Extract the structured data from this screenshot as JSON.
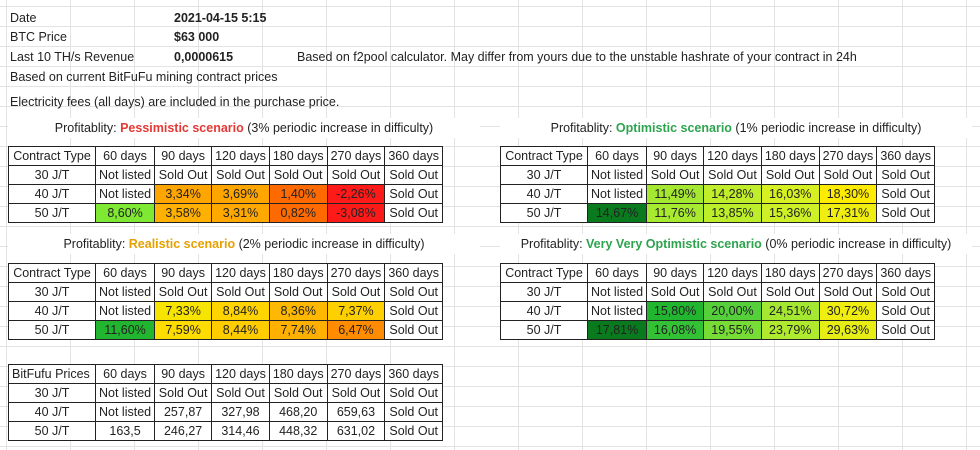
{
  "info": {
    "date_label": "Date",
    "date_value": "2021-04-15 5:15",
    "btc_label": "BTC Price",
    "btc_value": "$63 000",
    "revenue_label": "Last 10 TH/s Revenue",
    "revenue_value": "0,0000615",
    "revenue_note": "Based on f2pool calculator. May differ from yours due to the unstable hashrate of your contract in 24h",
    "note1": "Based on current BitFuFu mining contract prices",
    "note2": "Electricity fees (all days) are included in the purchase price."
  },
  "columns": [
    "Contract Type",
    "60 days",
    "90 days",
    "120 days",
    "180 days",
    "270 days",
    "360 days"
  ],
  "scenarios": {
    "pessimistic": {
      "prefix": "Profitablity: ",
      "name": "Pessimistic scenario",
      "suffix": " (3% periodic increase in difficulty)",
      "rows": [
        {
          "type": "30 J/T",
          "cells": [
            "Not listed",
            "Sold Out",
            "Sold Out",
            "Sold Out",
            "Sold Out",
            "Sold Out"
          ]
        },
        {
          "type": "40 J/T",
          "cells": [
            "Not listed",
            "3,34%",
            "3,69%",
            "1,40%",
            "-2,26%",
            "Sold Out"
          ]
        },
        {
          "type": "50 J/T",
          "cells": [
            "8,60%",
            "3,58%",
            "3,31%",
            "0,82%",
            "-3,08%",
            "Sold Out"
          ]
        }
      ],
      "colors": [
        [
          "#ffffff",
          "#ffffff",
          "#ffffff",
          "#ffffff",
          "#ffffff",
          "#ffffff"
        ],
        [
          "#ffffff",
          "#ffa500",
          "#ffa500",
          "#ff6a00",
          "#ff1a1a",
          "#ffffff"
        ],
        [
          "#7ee832",
          "#ffb000",
          "#ffa800",
          "#ff6a00",
          "#ff1a1a",
          "#ffffff"
        ]
      ]
    },
    "realistic": {
      "prefix": "Profitablity: ",
      "name": "Realistic scenario",
      "suffix": " (2% periodic increase in difficulty)",
      "rows": [
        {
          "type": "30 J/T",
          "cells": [
            "Not listed",
            "Sold Out",
            "Sold Out",
            "Sold Out",
            "Sold Out",
            "Sold Out"
          ]
        },
        {
          "type": "40 J/T",
          "cells": [
            "Not listed",
            "7,33%",
            "8,84%",
            "8,36%",
            "7,37%",
            "Sold Out"
          ]
        },
        {
          "type": "50 J/T",
          "cells": [
            "11,60%",
            "7,59%",
            "8,44%",
            "7,74%",
            "6,47%",
            "Sold Out"
          ]
        }
      ],
      "colors": [
        [
          "#ffffff",
          "#ffffff",
          "#ffffff",
          "#ffffff",
          "#ffffff",
          "#ffffff"
        ],
        [
          "#ffffff",
          "#f7e400",
          "#ffd400",
          "#ffb800",
          "#ffd000",
          "#ffffff"
        ],
        [
          "#22b630",
          "#ffdc00",
          "#ffcc00",
          "#ffb000",
          "#ff8c00",
          "#ffffff"
        ]
      ]
    },
    "optimistic": {
      "prefix": "Profitablity: ",
      "name": "Optimistic scenario",
      "suffix": " (1% periodic increase in difficulty)",
      "rows": [
        {
          "type": "30 J/T",
          "cells": [
            "Not listed",
            "Sold Out",
            "Sold Out",
            "Sold Out",
            "Sold Out",
            "Sold Out"
          ]
        },
        {
          "type": "40 J/T",
          "cells": [
            "Not listed",
            "11,49%",
            "14,28%",
            "16,03%",
            "18,30%",
            "Sold Out"
          ]
        },
        {
          "type": "50 J/T",
          "cells": [
            "14,67%",
            "11,76%",
            "13,85%",
            "15,36%",
            "17,31%",
            "Sold Out"
          ]
        }
      ],
      "colors": [
        [
          "#ffffff",
          "#ffffff",
          "#ffffff",
          "#ffffff",
          "#ffffff",
          "#ffffff"
        ],
        [
          "#ffffff",
          "#a4e832",
          "#c0ee2a",
          "#d6f022",
          "#ffec00",
          "#ffffff"
        ],
        [
          "#0a7a1e",
          "#a8ea30",
          "#bcee2a",
          "#cdf026",
          "#f0ee10",
          "#ffffff"
        ]
      ]
    },
    "very_optimistic": {
      "prefix": "Profitablity: ",
      "name": "Very Very Optimistic scenario",
      "suffix": " (0% periodic increase in difficulty)",
      "rows": [
        {
          "type": "30 J/T",
          "cells": [
            "Not listed",
            "Sold Out",
            "Sold Out",
            "Sold Out",
            "Sold Out",
            "Sold Out"
          ]
        },
        {
          "type": "40 J/T",
          "cells": [
            "Not listed",
            "15,80%",
            "20,00%",
            "24,51%",
            "30,72%",
            "Sold Out"
          ]
        },
        {
          "type": "50 J/T",
          "cells": [
            "17,81%",
            "16,08%",
            "19,55%",
            "23,79%",
            "29,63%",
            "Sold Out"
          ]
        }
      ],
      "colors": [
        [
          "#ffffff",
          "#ffffff",
          "#ffffff",
          "#ffffff",
          "#ffffff",
          "#ffffff"
        ],
        [
          "#ffffff",
          "#22b630",
          "#55d03a",
          "#a4e832",
          "#f0ee10",
          "#ffffff"
        ],
        [
          "#0a7a1e",
          "#33c235",
          "#77dc36",
          "#b0ea2e",
          "#e6ee16",
          "#ffffff"
        ]
      ]
    }
  },
  "prices": {
    "header": "BitFufu Prices",
    "rows": [
      {
        "type": "30 J/T",
        "cells": [
          "Not listed",
          "Sold Out",
          "Sold Out",
          "Sold Out",
          "Sold Out",
          "Sold Out"
        ]
      },
      {
        "type": "40 J/T",
        "cells": [
          "Not listed",
          "257,87",
          "327,98",
          "468,20",
          "659,63",
          "Sold Out"
        ]
      },
      {
        "type": "50 J/T",
        "cells": [
          "163,5",
          "246,27",
          "314,46",
          "448,32",
          "631,02",
          "Sold Out"
        ]
      }
    ]
  }
}
